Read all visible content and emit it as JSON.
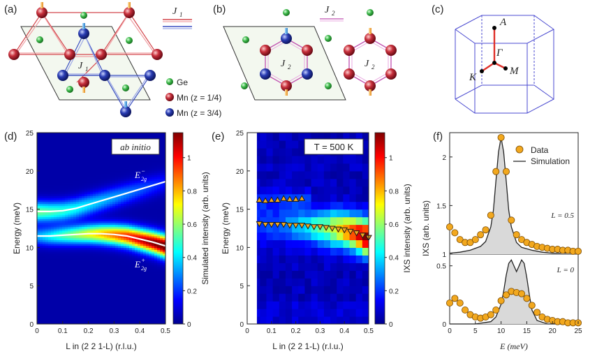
{
  "panels": {
    "a": {
      "label": "(a)",
      "legend_j1": "J",
      "legend_j1_sub": "1",
      "center_label": "J",
      "center_label_sub": "1",
      "legend_items": [
        {
          "text": "Ge",
          "color": "#3cb84a"
        },
        {
          "text": "Mn (z = 1/4)",
          "color": "#c0303a"
        },
        {
          "text": "Mn (z = 3/4)",
          "color": "#2a3db3"
        }
      ]
    },
    "b": {
      "label": "(b)",
      "legend_j2": "J",
      "legend_j2_sub": "2",
      "hex_label": "J",
      "hex_label_sub": "2"
    },
    "c": {
      "label": "(c)",
      "points": [
        "A",
        "Γ",
        "K",
        "M"
      ]
    },
    "d": {
      "label": "(d)",
      "badge": "ab initio",
      "ylabel": "Energy (meV)",
      "xlabel": "L in (2 2 1-L) (r.l.u.)",
      "colorbar_label": "Simulated intensity (arb. units)",
      "mode_upper": "E",
      "mode_upper_sub": "2g",
      "mode_upper_sup": "−",
      "mode_lower": "E",
      "mode_lower_sub": "2g",
      "mode_lower_sup": "+"
    },
    "e": {
      "label": "(e)",
      "badge": "T = 500 K",
      "ylabel": "Energy (meV)",
      "xlabel": "L in (2 2 1-L) (r.l.u.)",
      "colorbar_label": "IXS intensity (arb. units)"
    },
    "f": {
      "label": "(f)",
      "ylabel": "IXS (arb. units)",
      "xlabel": "E (meV)",
      "legend_data": "Data",
      "legend_sim": "Simulation",
      "label_top": "L = 0.5",
      "label_bottom": "L = 0"
    }
  },
  "chart_data": [
    {
      "type": "heatmap",
      "panel": "d",
      "xlabel": "L in (2 2 1-L) (r.l.u.)",
      "ylabel": "Energy (meV)",
      "xlim": [
        0,
        0.5
      ],
      "ylim": [
        0,
        25
      ],
      "xticks": [
        "0",
        "0.1",
        "0.2",
        "0.3",
        "0.4",
        "0.5"
      ],
      "yticks": [
        "0",
        "5",
        "10",
        "15",
        "20",
        "25"
      ],
      "colorbar": {
        "ticks": [
          "0",
          "0.2",
          "0.4",
          "0.6",
          "0.8",
          "1"
        ],
        "range": [
          0,
          1.15
        ]
      },
      "series": [
        {
          "name": "E2g- (upper)",
          "x": [
            0,
            0.05,
            0.1,
            0.15,
            0.2,
            0.25,
            0.3,
            0.35,
            0.4,
            0.45,
            0.5
          ],
          "y": [
            14.7,
            14.7,
            14.8,
            15.1,
            15.6,
            16.1,
            16.6,
            17.1,
            17.6,
            18.1,
            18.6
          ]
        },
        {
          "name": "E2g+ (lower)",
          "x": [
            0,
            0.05,
            0.1,
            0.15,
            0.2,
            0.25,
            0.3,
            0.35,
            0.4,
            0.45,
            0.5
          ],
          "y": [
            11.5,
            11.5,
            11.6,
            11.7,
            11.8,
            11.8,
            11.7,
            11.5,
            11.1,
            10.7,
            10.2
          ]
        }
      ]
    },
    {
      "type": "heatmap",
      "panel": "e",
      "xlabel": "L in (2 2 1-L) (r.l.u.)",
      "ylabel": "Energy (meV)",
      "xlim": [
        0,
        0.5
      ],
      "ylim": [
        0,
        25
      ],
      "xticks": [
        "0",
        "0.1",
        "0.2",
        "0.3",
        "0.4",
        "0.5"
      ],
      "yticks": [
        "0",
        "5",
        "10",
        "15",
        "20",
        "25"
      ],
      "colorbar": {
        "ticks": [
          "0",
          "0.2",
          "0.4",
          "0.6",
          "0.8",
          "1"
        ],
        "range": [
          0,
          1.15
        ]
      },
      "series": [
        {
          "name": "upper mode",
          "marker": "triangle-up",
          "x": [
            0.05,
            0.075,
            0.1,
            0.125,
            0.15,
            0.175,
            0.2,
            0.225
          ],
          "y": [
            16.2,
            16.1,
            16.2,
            16.2,
            16.4,
            16.3,
            16.3,
            16.4
          ]
        },
        {
          "name": "lower mode",
          "marker": "triangle-down",
          "x": [
            0.05,
            0.075,
            0.1,
            0.125,
            0.15,
            0.175,
            0.2,
            0.225,
            0.25,
            0.275,
            0.3,
            0.325,
            0.35,
            0.375,
            0.4,
            0.425,
            0.45,
            0.475,
            0.5
          ],
          "y": [
            13.1,
            13.0,
            13.0,
            13.0,
            13.0,
            12.9,
            12.9,
            12.9,
            12.8,
            12.7,
            12.7,
            12.6,
            12.5,
            12.4,
            12.3,
            12.1,
            11.9,
            11.6,
            11.3
          ]
        }
      ]
    },
    {
      "type": "line",
      "panel": "f",
      "xlabel": "E (meV)",
      "ylabel": "IXS (arb. units)",
      "xlim": [
        0,
        25
      ],
      "xticks": [
        "0",
        "5",
        "10",
        "15",
        "20",
        "25"
      ],
      "subplots": [
        {
          "label": "L = 0.5",
          "ylim": [
            1,
            2.25
          ],
          "yticks": [
            "1",
            "1.5",
            "2"
          ],
          "data_x": [
            0,
            1,
            2,
            3,
            4,
            5,
            6,
            7,
            8,
            9,
            10,
            11,
            12,
            13,
            14,
            15,
            16,
            17,
            18,
            19,
            20,
            21,
            22,
            23,
            24,
            25
          ],
          "data_y": [
            1.28,
            1.22,
            1.15,
            1.12,
            1.12,
            1.15,
            1.2,
            1.25,
            1.4,
            1.85,
            2.2,
            1.85,
            1.35,
            1.2,
            1.15,
            1.12,
            1.1,
            1.08,
            1.07,
            1.06,
            1.05,
            1.05,
            1.04,
            1.04,
            1.03,
            1.03
          ],
          "sim_x": [
            0,
            2,
            4,
            6,
            7,
            8,
            8.5,
            9,
            9.5,
            10,
            10.5,
            11,
            11.5,
            12,
            13,
            14,
            16,
            18,
            20,
            25
          ],
          "sim_y": [
            1.01,
            1.02,
            1.04,
            1.08,
            1.13,
            1.28,
            1.45,
            1.75,
            2.05,
            2.2,
            2.05,
            1.75,
            1.45,
            1.28,
            1.12,
            1.07,
            1.04,
            1.02,
            1.01,
            1.01
          ]
        },
        {
          "label": "L = 0",
          "ylim": [
            0,
            0.6
          ],
          "yticks": [
            "0",
            "0.5"
          ],
          "data_x": [
            0,
            1,
            2,
            3,
            4,
            5,
            6,
            7,
            8,
            9,
            10,
            11,
            12,
            13,
            14,
            15,
            16,
            17,
            18,
            19,
            20,
            21,
            22,
            23,
            24,
            25
          ],
          "data_y": [
            0.18,
            0.22,
            0.18,
            0.12,
            0.08,
            0.06,
            0.05,
            0.06,
            0.08,
            0.12,
            0.2,
            0.25,
            0.28,
            0.27,
            0.26,
            0.22,
            0.16,
            0.1,
            0.06,
            0.04,
            0.03,
            0.02,
            0.02,
            0.01,
            0.01,
            0.01
          ],
          "sim_x": [
            0,
            5,
            8,
            9,
            10,
            10.5,
            11,
            11.5,
            12,
            12.5,
            13,
            13.5,
            14,
            14.5,
            15,
            15.5,
            16,
            17,
            19,
            25
          ],
          "sim_y": [
            0.0,
            0.0,
            0.02,
            0.06,
            0.17,
            0.28,
            0.42,
            0.52,
            0.55,
            0.5,
            0.45,
            0.5,
            0.55,
            0.52,
            0.4,
            0.25,
            0.12,
            0.03,
            0.0,
            0.0
          ]
        }
      ]
    }
  ]
}
